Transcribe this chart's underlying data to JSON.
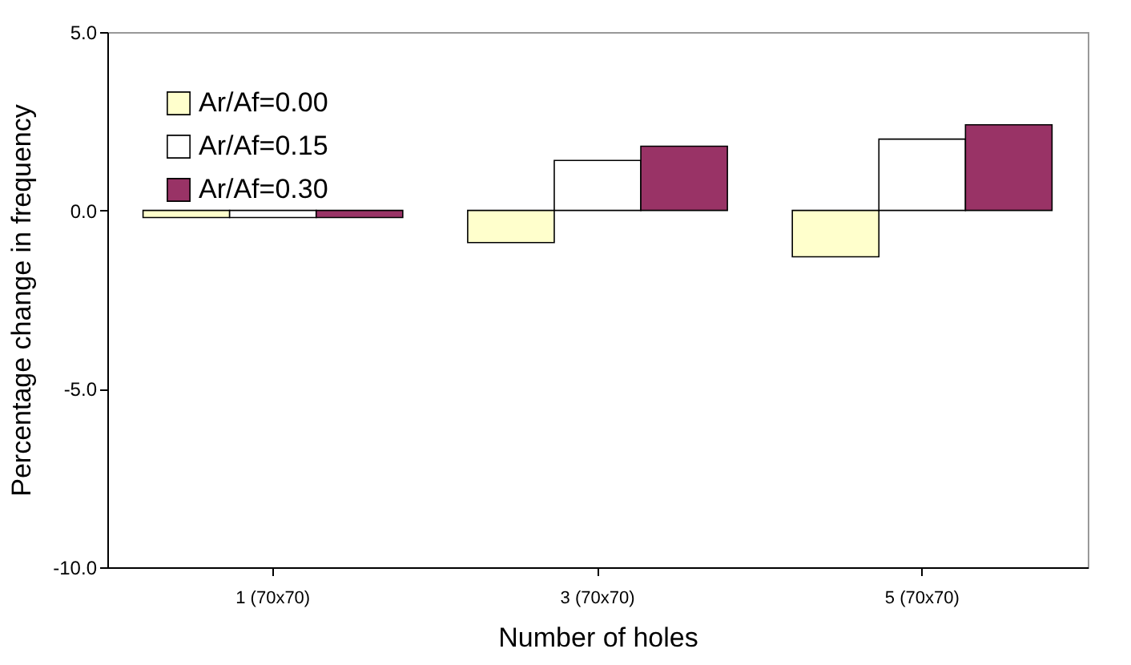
{
  "chart_data": {
    "type": "bar",
    "xlabel": "Number of holes",
    "ylabel": "Percentage change in frequency",
    "categories": [
      "1 (70x70)",
      "3 (70x70)",
      "5 (70x70)"
    ],
    "series": [
      {
        "name": "Ar/Af=0.00",
        "color": "#ffffcc",
        "values": [
          -0.2,
          -0.9,
          -1.3
        ]
      },
      {
        "name": "Ar/Af=0.15",
        "color": "#ffffff",
        "values": [
          -0.2,
          1.4,
          2.0
        ]
      },
      {
        "name": "Ar/Af=0.30",
        "color": "#993366",
        "values": [
          -0.2,
          1.8,
          2.4
        ]
      }
    ],
    "ylim": [
      -10,
      5
    ],
    "yticks": [
      {
        "value": -10,
        "label": "-10.0"
      },
      {
        "value": -5,
        "label": "-5.0"
      },
      {
        "value": 0,
        "label": "0.0"
      },
      {
        "value": 5,
        "label": "5.0"
      }
    ],
    "grid": false,
    "legend": "top left"
  }
}
